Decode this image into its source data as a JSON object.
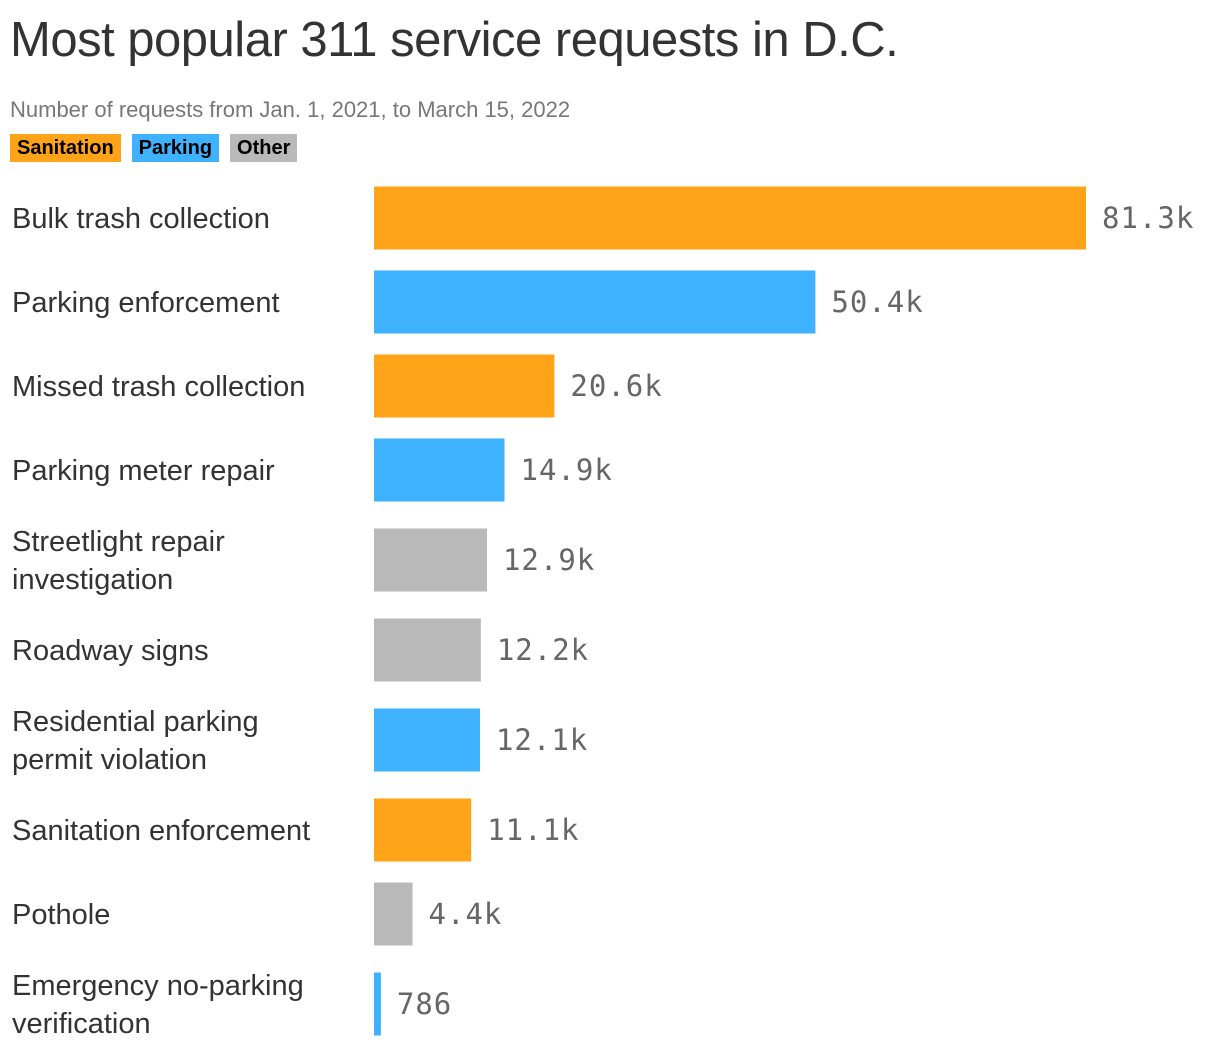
{
  "chart_data": {
    "type": "bar",
    "orientation": "horizontal",
    "title": "Most popular 311 service requests in D.C.",
    "subtitle": "Number of requests from Jan. 1, 2021, to March 15, 2022",
    "legend": [
      {
        "name": "Sanitation",
        "color": "#FFA319"
      },
      {
        "name": "Parking",
        "color": "#3EB2FF"
      },
      {
        "name": "Other",
        "color": "#B9B9B9"
      }
    ],
    "categories": [
      [
        "Bulk trash collection"
      ],
      [
        "Parking enforcement"
      ],
      [
        "Missed trash collection"
      ],
      [
        "Parking meter repair"
      ],
      [
        "Streetlight repair",
        "investigation"
      ],
      [
        "Roadway signs"
      ],
      [
        "Residential parking",
        "permit violation"
      ],
      [
        "Sanitation enforcement"
      ],
      [
        "Pothole"
      ],
      [
        "Emergency no-parking",
        "verification"
      ]
    ],
    "values": [
      81300,
      50400,
      20600,
      14900,
      12900,
      12200,
      12100,
      11100,
      4400,
      786
    ],
    "value_labels": [
      "81.3k",
      "50.4k",
      "20.6k",
      "14.9k",
      "12.9k",
      "12.2k",
      "12.1k",
      "11.1k",
      "4.4k",
      "786"
    ],
    "groups": [
      "Sanitation",
      "Parking",
      "Sanitation",
      "Parking",
      "Other",
      "Other",
      "Parking",
      "Sanitation",
      "Other",
      "Parking"
    ],
    "xlim": [
      0,
      81300
    ],
    "grid": false,
    "legend_placement": "top-left"
  }
}
